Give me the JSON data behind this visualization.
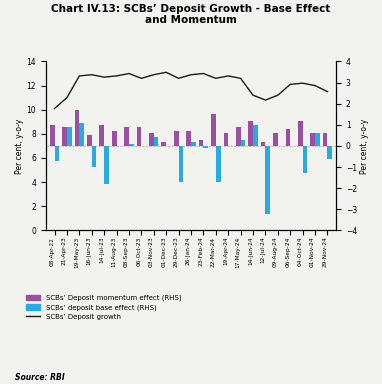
{
  "title": "Chart IV.13: SCBs’ Deposit Growth - Base Effect\nand Momentum",
  "x_labels": [
    "08-Apr-22",
    "21-Apr-23",
    "19-May-23",
    "16-Jun-23",
    "14-Jul-23",
    "11-Aug-23",
    "08-Sep-23",
    "06-Oct-23",
    "03-Nov-23",
    "01-Dec-23",
    "29-Dec-23",
    "26-Jan-24",
    "23-Feb-24",
    "22-Mar-24",
    "19-Apr-24",
    "17-May-24",
    "14-Jun-24",
    "12-Jul-24",
    "09-Aug-24",
    "06-Sep-24",
    "04-Oct-24",
    "01-Nov-24",
    "29-Nov-24"
  ],
  "momentum": [
    1.0,
    0.9,
    1.7,
    0.5,
    1.0,
    0.7,
    0.9,
    0.9,
    0.6,
    0.2,
    0.7,
    0.7,
    0.3,
    1.5,
    0.6,
    0.9,
    1.2,
    0.2,
    0.6,
    0.8,
    1.2,
    0.6,
    0.6
  ],
  "base_effect": [
    -0.7,
    0.9,
    1.1,
    -1.0,
    -1.8,
    0.0,
    0.1,
    0.0,
    0.4,
    0.0,
    -1.7,
    0.2,
    -0.1,
    -1.7,
    0.0,
    0.3,
    1.0,
    -3.2,
    0.0,
    0.0,
    -1.3,
    0.6,
    -0.6
  ],
  "deposit_growth": [
    10.1,
    11.0,
    12.8,
    12.9,
    12.7,
    12.8,
    13.0,
    12.6,
    12.9,
    13.1,
    12.6,
    12.9,
    13.0,
    12.6,
    12.8,
    12.6,
    11.2,
    10.8,
    11.2,
    12.1,
    12.2,
    12.0,
    11.5
  ],
  "momentum_color": "#9B4FA3",
  "base_effect_color": "#29ABE2",
  "line_color": "#1a1a1a",
  "ylim_left": [
    0,
    14
  ],
  "ylim_right": [
    -4,
    4
  ],
  "yticks_left": [
    0,
    2,
    4,
    6,
    8,
    10,
    12,
    14
  ],
  "yticks_right": [
    -4,
    -3,
    -2,
    -1,
    0,
    1,
    2,
    3,
    4
  ],
  "ylabel_left": "Per cent, y-o-y",
  "ylabel_right": "Per cent, y-o-y",
  "source": "Source: RBI",
  "legend_momentum": "SCBs’ Deposit momentum effect (RHS)",
  "legend_base": "SCBs’ deposit base effect (RHS)",
  "legend_growth": "SCBs’ Deposit growth",
  "background_color": "#f2f2ee"
}
